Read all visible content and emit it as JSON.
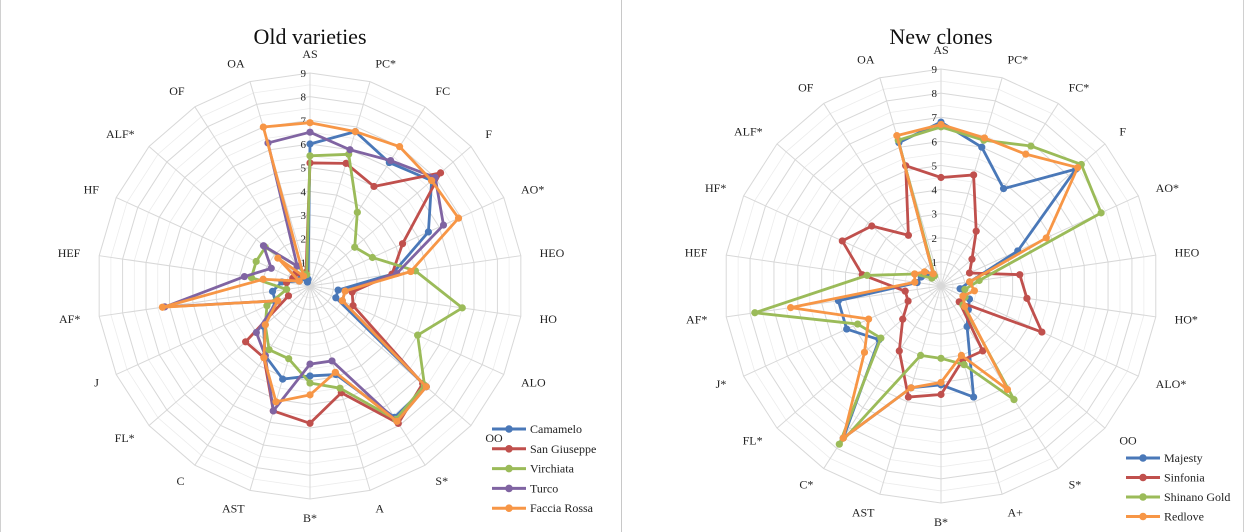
{
  "chart_data": [
    {
      "type": "radar",
      "title": "Old varieties",
      "rlim": [
        0,
        9
      ],
      "ticks": [
        "1",
        "2",
        "3",
        "4",
        "5",
        "6",
        "7",
        "8",
        "9"
      ],
      "grid": true,
      "legend_position": "bottom-right",
      "axes": [
        "AS",
        "PC*",
        "FC",
        "F",
        "AO*",
        "HEO",
        "HO",
        "ALO",
        "OO",
        "S*",
        "A",
        "B*",
        "AST",
        "C",
        "FL*",
        "J",
        "AF*",
        "HEF",
        "HF",
        "ALF*",
        "OF",
        "OA"
      ],
      "series": [
        {
          "name": "Camamelo",
          "color": "#4a78b8",
          "values": [
            6.0,
            6.8,
            6.2,
            6.8,
            5.5,
            3.5,
            1.2,
            1.2,
            6.5,
            6.6,
            3.9,
            3.8,
            4.1,
            3.5,
            2.6,
            1.6,
            1.6,
            1.2,
            0.5,
            0.5,
            0.2,
            0.3
          ]
        },
        {
          "name": "San Giuseppe",
          "color": "#c0504d",
          "values": [
            5.2,
            5.4,
            5.0,
            7.3,
            4.3,
            3.5,
            1.8,
            2.0,
            6.3,
            6.9,
            4.7,
            5.8,
            5.5,
            3.6,
            3.6,
            1.0,
            1.0,
            1.0,
            0.8,
            0.8,
            0.5,
            0.6
          ]
        },
        {
          "name": "Virchiata",
          "color": "#9bbb59",
          "values": [
            5.5,
            5.8,
            3.7,
            2.5,
            2.9,
            4.5,
            6.5,
            5.0,
            6.4,
            6.7,
            4.5,
            4.1,
            3.2,
            3.2,
            2.5,
            2.0,
            1.0,
            2.5,
            2.5,
            2.5,
            1.0,
            0.5
          ]
        },
        {
          "name": "Turco",
          "color": "#8064a2",
          "values": [
            6.5,
            6.0,
            6.3,
            7.0,
            6.2,
            3.7,
            1.5,
            1.5,
            6.5,
            6.8,
            3.3,
            3.3,
            5.5,
            3.5,
            3.0,
            1.5,
            6.2,
            2.8,
            1.8,
            2.6,
            1.0,
            6.3
          ]
        },
        {
          "name": "Faccia Rossa",
          "color": "#f79646",
          "values": [
            6.9,
            6.8,
            7.0,
            6.8,
            6.9,
            4.3,
            1.5,
            1.5,
            6.5,
            6.8,
            3.8,
            4.6,
            5.1,
            3.6,
            2.5,
            1.5,
            6.3,
            2.0,
            0.5,
            1.8,
            0.5,
            7.0
          ]
        }
      ]
    },
    {
      "type": "radar",
      "title": "New clones",
      "rlim": [
        0,
        9
      ],
      "ticks": [
        "1",
        "2",
        "3",
        "4",
        "5",
        "6",
        "7",
        "8",
        "9"
      ],
      "grid": true,
      "legend_position": "bottom-right",
      "axes": [
        "AS",
        "PC*",
        "FC*",
        "F",
        "AO*",
        "HEO",
        "HO*",
        "ALO*",
        "OO",
        "S*",
        "A+",
        "B*",
        "AST",
        "C*",
        "FL*",
        "J*",
        "AF*",
        "HEF",
        "HF*",
        "ALF*",
        "OF",
        "OA"
      ],
      "series": [
        {
          "name": "Majesty",
          "color": "#4a78b8",
          "values": [
            6.8,
            6.0,
            4.8,
            7.4,
            3.5,
            1.2,
            0.8,
            1.3,
            1.5,
            2.0,
            4.8,
            4.1,
            4.4,
            7.5,
            3.4,
            4.3,
            4.3,
            1.0,
            0.9,
            0.8,
            0.6,
            6.2
          ]
        },
        {
          "name": "Sinfonia",
          "color": "#c0504d",
          "values": [
            4.5,
            4.8,
            2.7,
            1.7,
            1.3,
            3.3,
            3.6,
            4.6,
            1.0,
            3.2,
            3.2,
            4.5,
            4.8,
            3.2,
            2.1,
            1.5,
            1.5,
            3.3,
            4.5,
            3.8,
            2.5,
            5.2
          ]
        },
        {
          "name": "Shinano Gold",
          "color": "#9bbb59",
          "values": [
            6.6,
            6.3,
            6.9,
            7.7,
            7.3,
            1.6,
            1.0,
            1.1,
            1.2,
            5.6,
            3.4,
            3.0,
            3.0,
            7.8,
            3.3,
            3.8,
            7.8,
            3.1,
            1.2,
            0.5,
            0.5,
            6.3
          ]
        },
        {
          "name": "Redlove",
          "color": "#f79646",
          "values": [
            6.7,
            6.4,
            6.5,
            7.5,
            4.8,
            1.2,
            1.4,
            1.0,
            1.3,
            5.1,
            3.0,
            4.0,
            4.4,
            7.5,
            4.2,
            3.3,
            6.3,
            1.1,
            1.2,
            0.9,
            0.6,
            6.5
          ]
        }
      ]
    }
  ]
}
